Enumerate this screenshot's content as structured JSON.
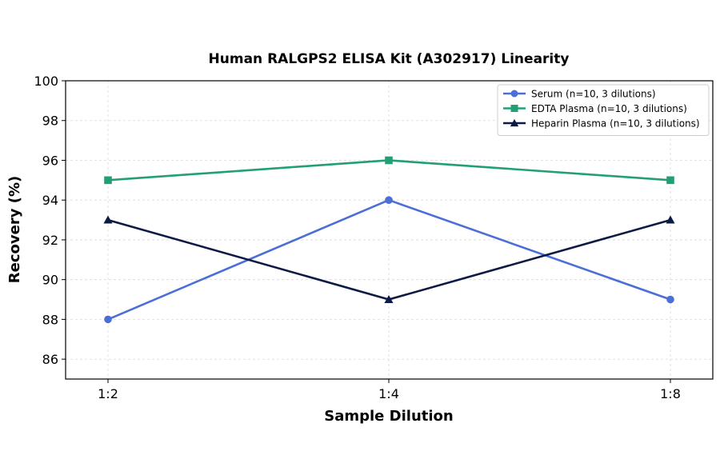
{
  "chart_data": {
    "type": "line",
    "title": "Human RALGPS2 ELISA Kit (A302917) Linearity",
    "xlabel": "Sample Dilution",
    "ylabel": "Recovery (%)",
    "categories": [
      "1:2",
      "1:4",
      "1:8"
    ],
    "ylim": [
      85,
      100
    ],
    "yticks": [
      86,
      88,
      90,
      92,
      94,
      96,
      98,
      100
    ],
    "grid": true,
    "legend_position": "top-right",
    "series": [
      {
        "name": "Serum (n=10, 3 dilutions)",
        "values": [
          88,
          94,
          89
        ],
        "color": "#4b6fd6",
        "marker": "circle"
      },
      {
        "name": "EDTA Plasma (n=10, 3 dilutions)",
        "values": [
          95,
          96,
          95
        ],
        "color": "#239f76",
        "marker": "square"
      },
      {
        "name": "Heparin Plasma (n=10, 3 dilutions)",
        "values": [
          93,
          89,
          93
        ],
        "color": "#0d1a45",
        "marker": "triangle"
      }
    ]
  }
}
